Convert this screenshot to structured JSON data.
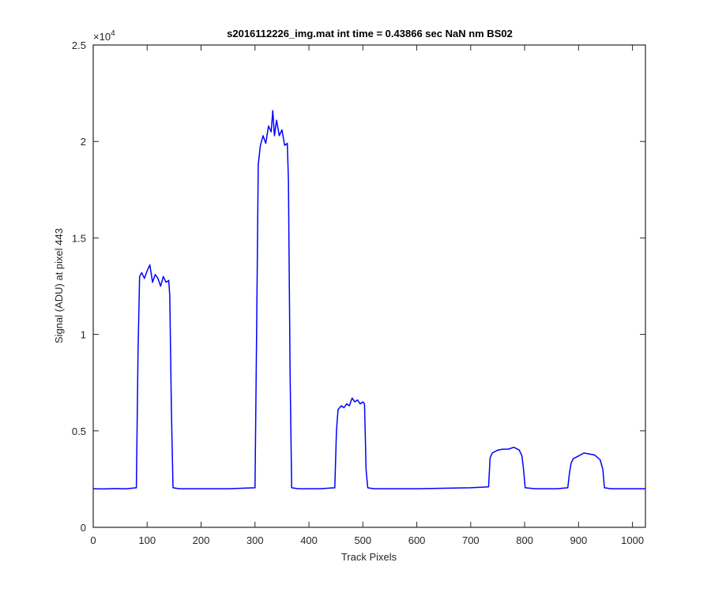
{
  "chart_data": {
    "type": "line",
    "title": "s2016112226_img.mat int time = 0.43866 sec  NaN nm BS02",
    "xlabel": "Track Pixels",
    "ylabel": "Signal (ADU) at pixel 443",
    "xlim": [
      0,
      1024
    ],
    "ylim": [
      0,
      25000
    ],
    "x_ticks": [
      0,
      100,
      200,
      300,
      400,
      500,
      600,
      700,
      800,
      900,
      1000
    ],
    "x_tick_labels": [
      "0",
      "100",
      "200",
      "300",
      "400",
      "500",
      "600",
      "700",
      "800",
      "900",
      "1000"
    ],
    "y_ticks": [
      0,
      5000,
      10000,
      15000,
      20000,
      25000
    ],
    "y_tick_labels": [
      "0",
      "0.5",
      "1",
      "1.5",
      "2",
      "2.5"
    ],
    "y_exponent_label": "×10",
    "y_exponent_power": "4",
    "grid": false,
    "line_color": "#0000ff",
    "series": [
      {
        "x": [
          0,
          20,
          40,
          60,
          80,
          83,
          86,
          90,
          95,
          100,
          105,
          110,
          115,
          120,
          125,
          130,
          135,
          140,
          142,
          145,
          148,
          160,
          200,
          250,
          300,
          303,
          306,
          310,
          315,
          320,
          325,
          330,
          333,
          336,
          340,
          345,
          350,
          355,
          360,
          362,
          365,
          368,
          380,
          420,
          448,
          451,
          454,
          460,
          465,
          470,
          475,
          480,
          485,
          490,
          495,
          500,
          503,
          506,
          509,
          520,
          600,
          700,
          733,
          736,
          740,
          750,
          760,
          770,
          780,
          790,
          795,
          798,
          801,
          820,
          860,
          880,
          883,
          886,
          890,
          900,
          910,
          920,
          930,
          940,
          945,
          948,
          960,
          1000,
          1024
        ],
        "y": [
          2000,
          1990,
          2010,
          1995,
          2050,
          9000,
          13000,
          13200,
          12900,
          13300,
          13600,
          12700,
          13100,
          12900,
          12500,
          13000,
          12700,
          12800,
          12000,
          6000,
          2050,
          2000,
          2000,
          2000,
          2050,
          10000,
          18800,
          19800,
          20300,
          19900,
          20800,
          20500,
          21600,
          20300,
          21100,
          20300,
          20600,
          19800,
          19900,
          18000,
          8000,
          2050,
          2000,
          2000,
          2050,
          5000,
          6100,
          6300,
          6200,
          6400,
          6300,
          6700,
          6500,
          6600,
          6400,
          6500,
          6400,
          3000,
          2050,
          2000,
          2000,
          2050,
          2100,
          3600,
          3850,
          4000,
          4050,
          4050,
          4150,
          4000,
          3700,
          3000,
          2050,
          2000,
          2000,
          2050,
          2800,
          3300,
          3550,
          3700,
          3850,
          3800,
          3750,
          3500,
          3000,
          2050,
          2000,
          2000,
          2000
        ]
      }
    ]
  }
}
